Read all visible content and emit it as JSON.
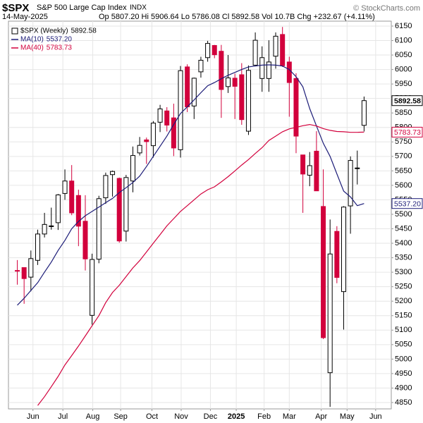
{
  "chart_data": {
    "type": "candlestick",
    "title": "$SPX",
    "subtitle": "S&P 500 Large Cap Index",
    "exchange": "INDX",
    "date": "14-May-2025",
    "quote": "Op 5807.20 Hi 5906.64 Lo 5786.08 Cl 5892.58 Vol 10.7B Chg +232.67 (+4.11%)",
    "credit": "© StockCharts.com",
    "up_color": "#ffffff",
    "down_color": "#d2003c",
    "ohlc": {
      "open": [
        5306,
        5316,
        5283,
        5341,
        5432,
        5460,
        5471,
        5572,
        5615,
        5565,
        5476,
        5151,
        5345,
        5557,
        5637,
        5624,
        5442,
        5615,
        5712,
        5757,
        5737,
        5818,
        5857,
        5833,
        5723,
        6009,
        5874,
        5992,
        6041,
        6083,
        6063,
        5941,
        5970,
        5982,
        5787,
        6015,
        5969,
        5969,
        6046,
        6121,
        6026,
        5969,
        5705,
        5635,
        5718,
        5527,
        4953,
        5441,
        5233,
        5529,
        5658,
        5807.2
      ],
      "high": [
        5342,
        5316,
        5375,
        5447,
        5505,
        5523,
        5570,
        5655,
        5670,
        5585,
        5566,
        5364,
        5564,
        5644,
        5651,
        5627,
        5636,
        5734,
        5767,
        5765,
        5822,
        5878,
        5870,
        5882,
        6012,
        6018,
        5972,
        6044,
        6099,
        6085,
        6085,
        6050,
        5986,
        6022,
        6014,
        6128,
        6080,
        6101,
        6128,
        6147,
        6044,
        5987,
        5705,
        5715,
        5787,
        5655,
        5482,
        5459,
        5528,
        5700,
        5720,
        5906.64
      ],
      "low": [
        5257,
        5191,
        5234,
        5325,
        5420,
        5447,
        5446,
        5550,
        5497,
        5390,
        5306,
        5119,
        5331,
        5536,
        5561,
        5402,
        5406,
        5576,
        5703,
        5674,
        5696,
        5784,
        5786,
        5701,
        5696,
        5853,
        5829,
        5972,
        6027,
        6039,
        5833,
        5919,
        5829,
        5809,
        5774,
        6014,
        5923,
        5923,
        6003,
        6009,
        5837,
        5711,
        5505,
        5597,
        5581,
        5069,
        4835,
        5262,
        5102,
        5433,
        5603,
        5786.08
      ],
      "close": [
        5305,
        5278,
        5347,
        5432,
        5465,
        5460,
        5567,
        5615,
        5505,
        5459,
        5346,
        5344,
        5554,
        5634,
        5648,
        5408,
        5627,
        5703,
        5738,
        5751,
        5815,
        5864,
        5808,
        5729,
        5996,
        5871,
        5970,
        6032,
        6090,
        6051,
        5931,
        5971,
        5942,
        5827,
        5997,
        6101,
        6041,
        6026,
        6115,
        6013,
        5955,
        5770,
        5639,
        5668,
        5581,
        5074,
        5363,
        5282,
        5525,
        5686,
        5660,
        5892.58
      ]
    },
    "series": [
      {
        "name": "$SPX (Weekly)",
        "value_label": "5892.58",
        "color": "#000000"
      },
      {
        "name": "MA(10)",
        "value_label": "5537.20",
        "color": "#1c1c78",
        "values": [
          5186,
          5210,
          5237,
          5264,
          5300,
          5335,
          5375,
          5410,
          5450,
          5475,
          5495,
          5510,
          5525,
          5540,
          5555,
          5575,
          5592,
          5610,
          5632,
          5665,
          5700,
          5735,
          5770,
          5810,
          5848,
          5871,
          5895,
          5920,
          5944,
          5955,
          5968,
          5980,
          5990,
          6000,
          6009,
          6012,
          6015,
          6016,
          6015,
          6012,
          6000,
          5975,
          5940,
          5865,
          5805,
          5745,
          5700,
          5640,
          5580,
          5560,
          5530,
          5537.2
        ]
      },
      {
        "name": "MA(40)",
        "value_label": "5783.73",
        "color": "#d2003c",
        "values": [
          null,
          null,
          null,
          4840,
          4870,
          4905,
          4940,
          4980,
          5012,
          5045,
          5080,
          5115,
          5150,
          5195,
          5230,
          5255,
          5285,
          5315,
          5340,
          5370,
          5400,
          5430,
          5460,
          5485,
          5510,
          5530,
          5550,
          5570,
          5585,
          5595,
          5612,
          5630,
          5650,
          5670,
          5689,
          5710,
          5730,
          5755,
          5770,
          5785,
          5795,
          5800,
          5806,
          5810,
          5805,
          5796,
          5790,
          5786,
          5785,
          5783,
          5783,
          5783.73
        ]
      }
    ],
    "xlim": [
      -1.3,
      55
    ],
    "xticks": [
      {
        "value": 2.3,
        "label": "Jun"
      },
      {
        "value": 6.7,
        "label": "Jul"
      },
      {
        "value": 11.1,
        "label": "Aug"
      },
      {
        "value": 15.2,
        "label": "Sep"
      },
      {
        "value": 19.8,
        "label": "Oct"
      },
      {
        "value": 24.1,
        "label": "Nov"
      },
      {
        "value": 28.4,
        "label": "Dec"
      },
      {
        "value": 32.2,
        "label": "2025"
      },
      {
        "value": 36.3,
        "label": "Feb"
      },
      {
        "value": 40.0,
        "label": "Mar"
      },
      {
        "value": 44.7,
        "label": "Apr"
      },
      {
        "value": 48.5,
        "label": "May"
      },
      {
        "value": 52.7,
        "label": "Jun"
      }
    ],
    "ylim": [
      4828,
      6167
    ],
    "yticks": [
      4850,
      4900,
      4950,
      5000,
      5050,
      5100,
      5150,
      5200,
      5250,
      5300,
      5350,
      5400,
      5450,
      5500,
      5550,
      5600,
      5650,
      5700,
      5750,
      5800,
      5850,
      5900,
      5950,
      6000,
      6050,
      6100,
      6150
    ],
    "grid": true
  }
}
